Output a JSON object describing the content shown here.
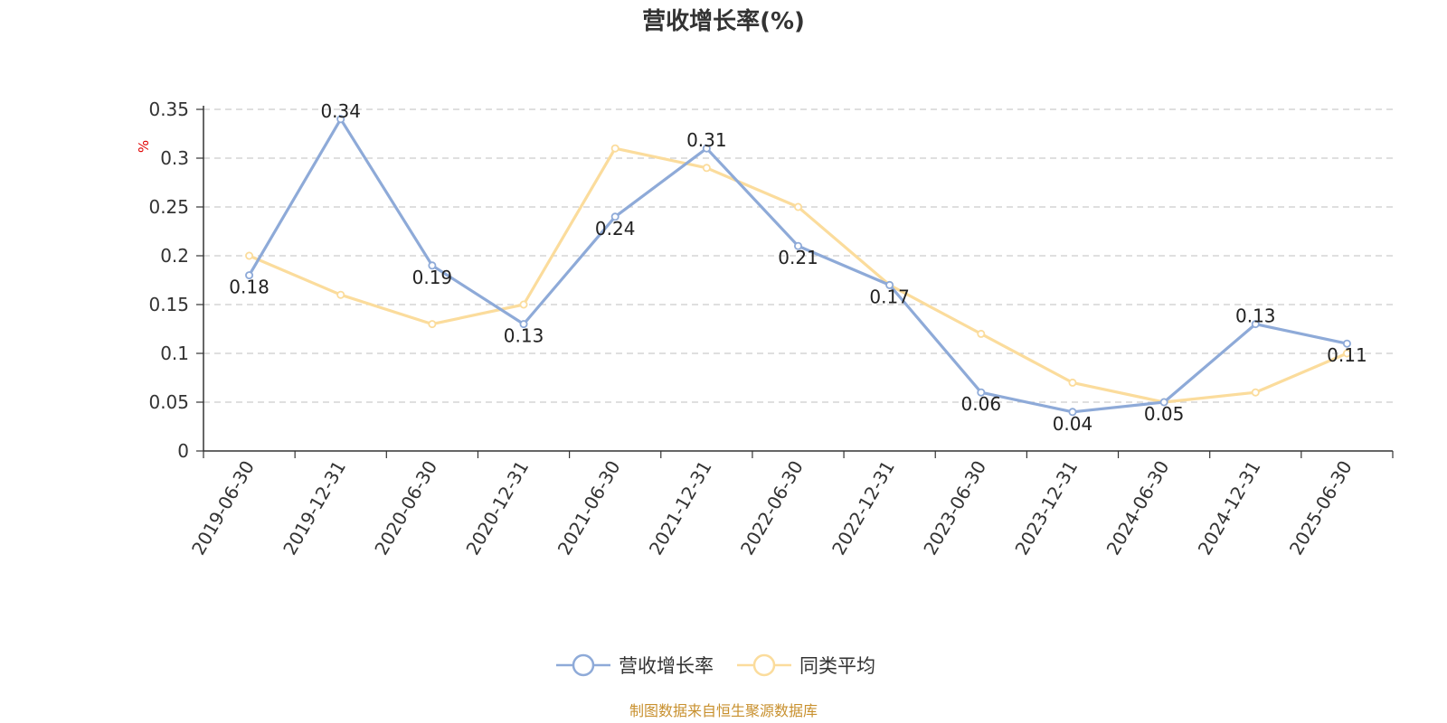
{
  "chart_data": {
    "type": "line",
    "title": "营收增长率(%)",
    "ylabel": "%",
    "xlabel": "",
    "ylim": [
      0,
      0.35
    ],
    "yticks": [
      0,
      0.05,
      0.1,
      0.15,
      0.2,
      0.25,
      0.3,
      0.35
    ],
    "ytick_labels": [
      "0",
      "0.05",
      "0.1",
      "0.15",
      "0.2",
      "0.25",
      "0.3",
      "0.35"
    ],
    "grid": true,
    "legend_position": "bottom-center",
    "categories": [
      "2019-06-30",
      "2019-12-31",
      "2020-06-30",
      "2020-12-31",
      "2021-06-30",
      "2021-12-31",
      "2022-06-30",
      "2022-12-31",
      "2023-06-30",
      "2023-12-31",
      "2024-06-30",
      "2024-12-31",
      "2025-06-30"
    ],
    "series": [
      {
        "name": "营收增长率",
        "color": "#8eaad8",
        "values": [
          0.18,
          0.34,
          0.19,
          0.13,
          0.24,
          0.31,
          0.21,
          0.17,
          0.06,
          0.04,
          0.05,
          0.13,
          0.11
        ],
        "data_labels": [
          "0.18",
          "0.34",
          "0.19",
          "0.13",
          "0.24",
          "0.31",
          "0.21",
          "0.17",
          "0.06",
          "0.04",
          "0.05",
          "0.13",
          "0.11"
        ]
      },
      {
        "name": "同类平均",
        "color": "#fbdc9c",
        "values": [
          0.2,
          0.16,
          0.13,
          0.15,
          0.31,
          0.29,
          0.25,
          0.17,
          0.12,
          0.07,
          0.05,
          0.06,
          0.1
        ]
      }
    ]
  },
  "footer": {
    "source": "制图数据来自恒生聚源数据库",
    "source_color": "#c8902e"
  }
}
